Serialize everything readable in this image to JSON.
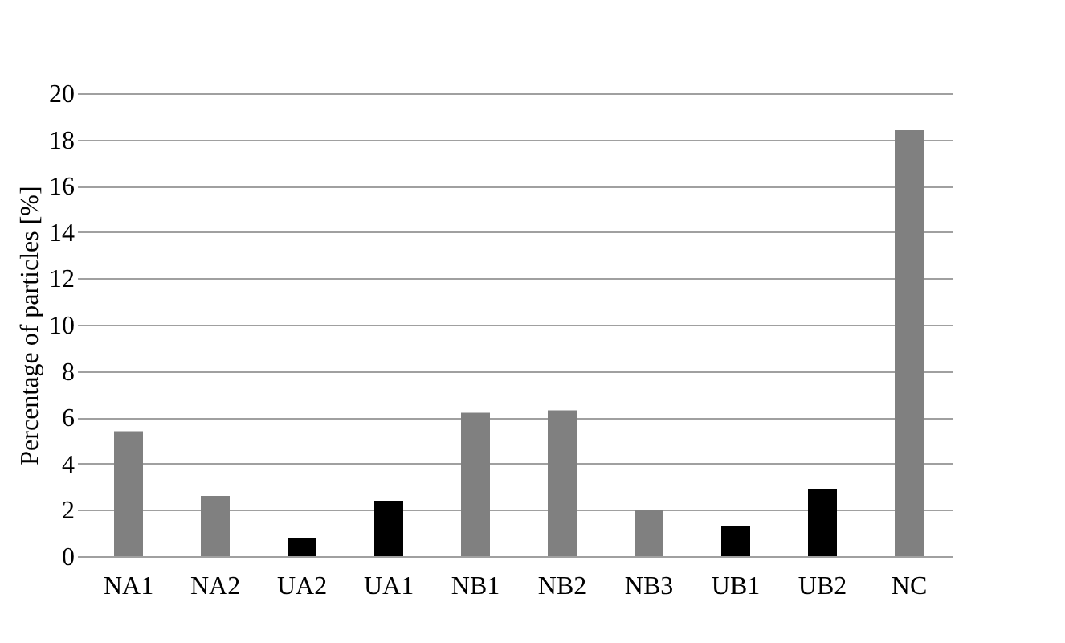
{
  "chart_data": {
    "type": "bar",
    "ylabel": "Percentage  of  particles  [%]",
    "categories": [
      "NA1",
      "NA2",
      "UA2",
      "UA1",
      "NB1",
      "NB2",
      "NB3",
      "UB1",
      "UB2",
      "NC"
    ],
    "values": [
      5.4,
      2.6,
      0.8,
      2.4,
      6.2,
      6.3,
      2.0,
      1.3,
      2.9,
      18.4
    ],
    "colors": [
      "#808080",
      "#808080",
      "#000000",
      "#000000",
      "#808080",
      "#808080",
      "#808080",
      "#000000",
      "#000000",
      "#808080"
    ],
    "ylim": [
      0,
      20
    ],
    "yticks": [
      0,
      2,
      4,
      6,
      8,
      10,
      12,
      14,
      16,
      18,
      20
    ],
    "grid": "y"
  }
}
